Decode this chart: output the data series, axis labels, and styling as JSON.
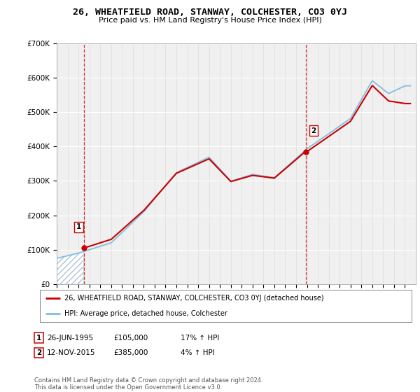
{
  "title": "26, WHEATFIELD ROAD, STANWAY, COLCHESTER, CO3 0YJ",
  "subtitle": "Price paid vs. HM Land Registry's House Price Index (HPI)",
  "ylabel_ticks": [
    "£0",
    "£100K",
    "£200K",
    "£300K",
    "£400K",
    "£500K",
    "£600K",
    "£700K"
  ],
  "ylim": [
    0,
    700000
  ],
  "xlim_start": 1993,
  "xlim_end": 2026,
  "transaction1_date": 1995.48,
  "transaction1_price": 105000,
  "transaction2_date": 2015.87,
  "transaction2_price": 385000,
  "legend_line1": "26, WHEATFIELD ROAD, STANWAY, COLCHESTER, CO3 0YJ (detached house)",
  "legend_line2": "HPI: Average price, detached house, Colchester",
  "footer": "Contains HM Land Registry data © Crown copyright and database right 2024.\nThis data is licensed under the Open Government Licence v3.0.",
  "line_color_price": "#cc0000",
  "line_color_hpi": "#7fbfdf",
  "vline_color": "#cc0000",
  "background_color": "#ffffff",
  "plot_bg_color": "#f0f0f0"
}
